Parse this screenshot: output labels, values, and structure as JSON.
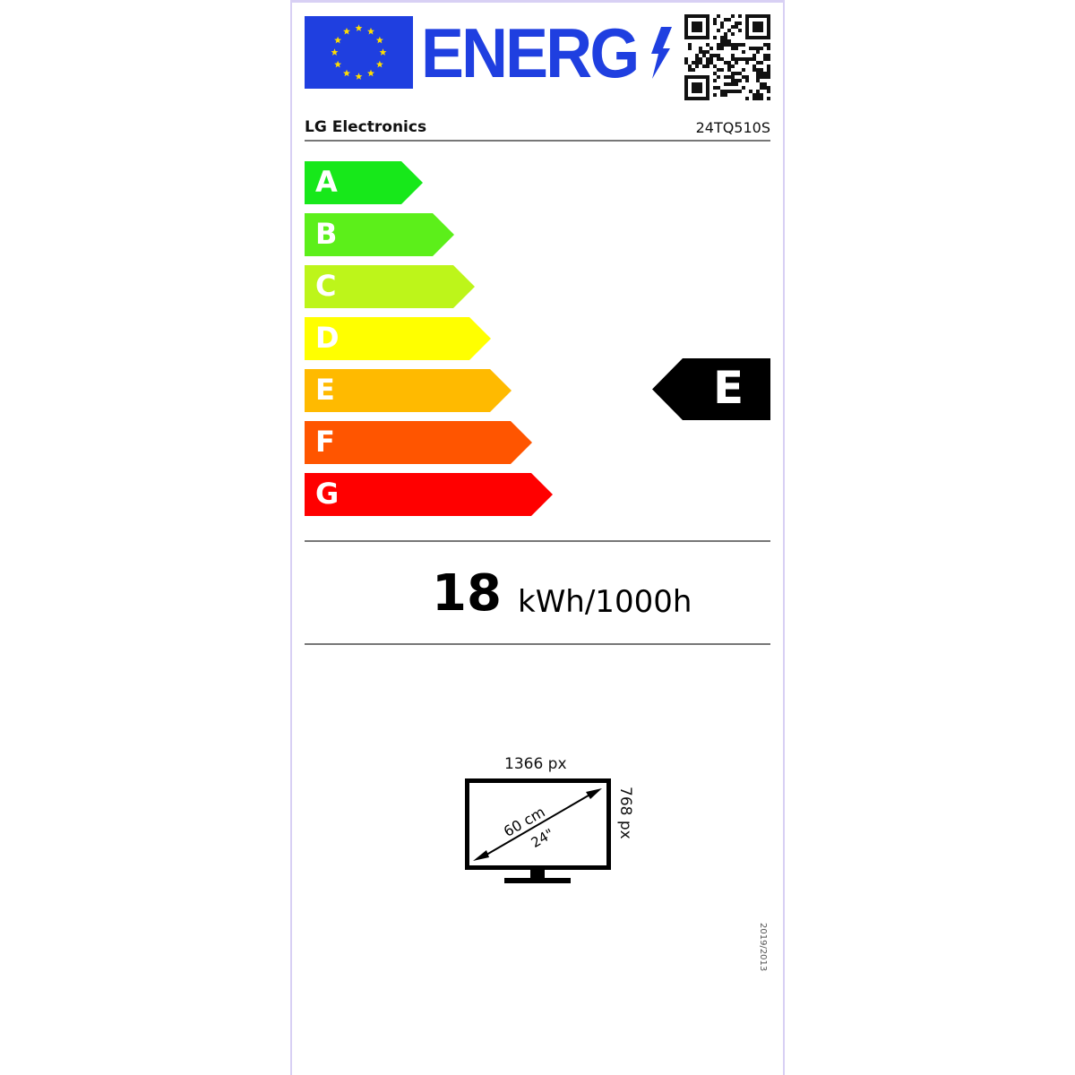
{
  "header": {
    "title": "ENERG",
    "brand": "LG Electronics",
    "model": "24TQ510S"
  },
  "scale": {
    "classes": [
      {
        "letter": "A",
        "color": "#17e81a"
      },
      {
        "letter": "B",
        "color": "#5cef1a"
      },
      {
        "letter": "C",
        "color": "#bdf51a"
      },
      {
        "letter": "D",
        "color": "#ffff00"
      },
      {
        "letter": "E",
        "color": "#ffba00"
      },
      {
        "letter": "F",
        "color": "#ff5500"
      },
      {
        "letter": "G",
        "color": "#ff0000"
      }
    ],
    "rating": "E"
  },
  "consumption": {
    "value": "18",
    "unit": "kWh/1000h"
  },
  "display": {
    "width_px": "1366 px",
    "height_px": "768 px",
    "diagonal_cm": "60 cm",
    "diagonal_in": "24\""
  },
  "regulation": "2019/2013",
  "colors": {
    "eu_blue": "#1f3fe0",
    "star": "#ffdd00"
  }
}
